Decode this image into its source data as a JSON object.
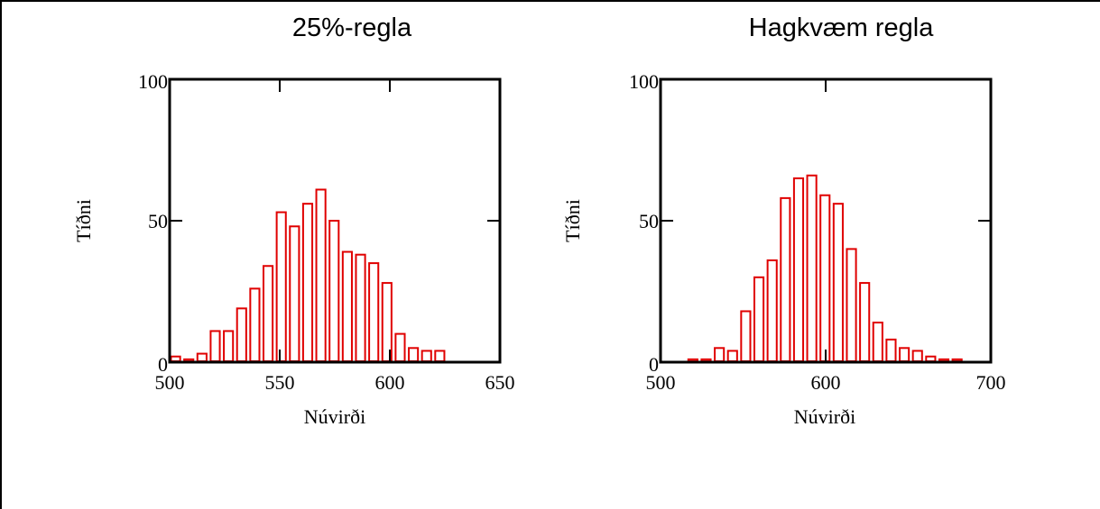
{
  "chart_data": [
    {
      "type": "bar",
      "title": "25%-regla",
      "xlabel": "Núvirði",
      "ylabel": "Tíðni",
      "xlim": [
        500,
        650
      ],
      "ylim": [
        0,
        100
      ],
      "xticks": [
        "500",
        "550",
        "600",
        "650"
      ],
      "yticks": [
        "0",
        "50",
        "100"
      ],
      "bar_color": "#e00000",
      "bin_width": 6,
      "x": [
        500,
        506,
        512,
        518,
        524,
        530,
        536,
        542,
        548,
        554,
        560,
        566,
        572,
        578,
        584,
        590,
        596,
        602,
        608,
        614,
        620,
        626,
        632,
        638
      ],
      "values": [
        2,
        1,
        3,
        11,
        11,
        19,
        26,
        34,
        53,
        48,
        56,
        61,
        50,
        39,
        38,
        35,
        28,
        10,
        5,
        4,
        4,
        0,
        0,
        0
      ]
    },
    {
      "type": "bar",
      "title": "Hagkvæm regla",
      "xlabel": "Núvirði",
      "ylabel": "Tíðni",
      "xlim": [
        500,
        700
      ],
      "ylim": [
        0,
        100
      ],
      "xticks": [
        "500",
        "600",
        "700"
      ],
      "yticks": [
        "0",
        "50",
        "100"
      ],
      "bar_color": "#e00000",
      "bin_width": 8,
      "x": [
        508,
        516,
        524,
        532,
        540,
        548,
        556,
        564,
        572,
        580,
        588,
        596,
        604,
        612,
        620,
        628,
        636,
        644,
        652,
        660,
        668,
        676
      ],
      "values": [
        0,
        1,
        1,
        5,
        4,
        18,
        30,
        36,
        58,
        65,
        66,
        59,
        56,
        40,
        28,
        14,
        8,
        5,
        4,
        2,
        1,
        1
      ]
    }
  ]
}
